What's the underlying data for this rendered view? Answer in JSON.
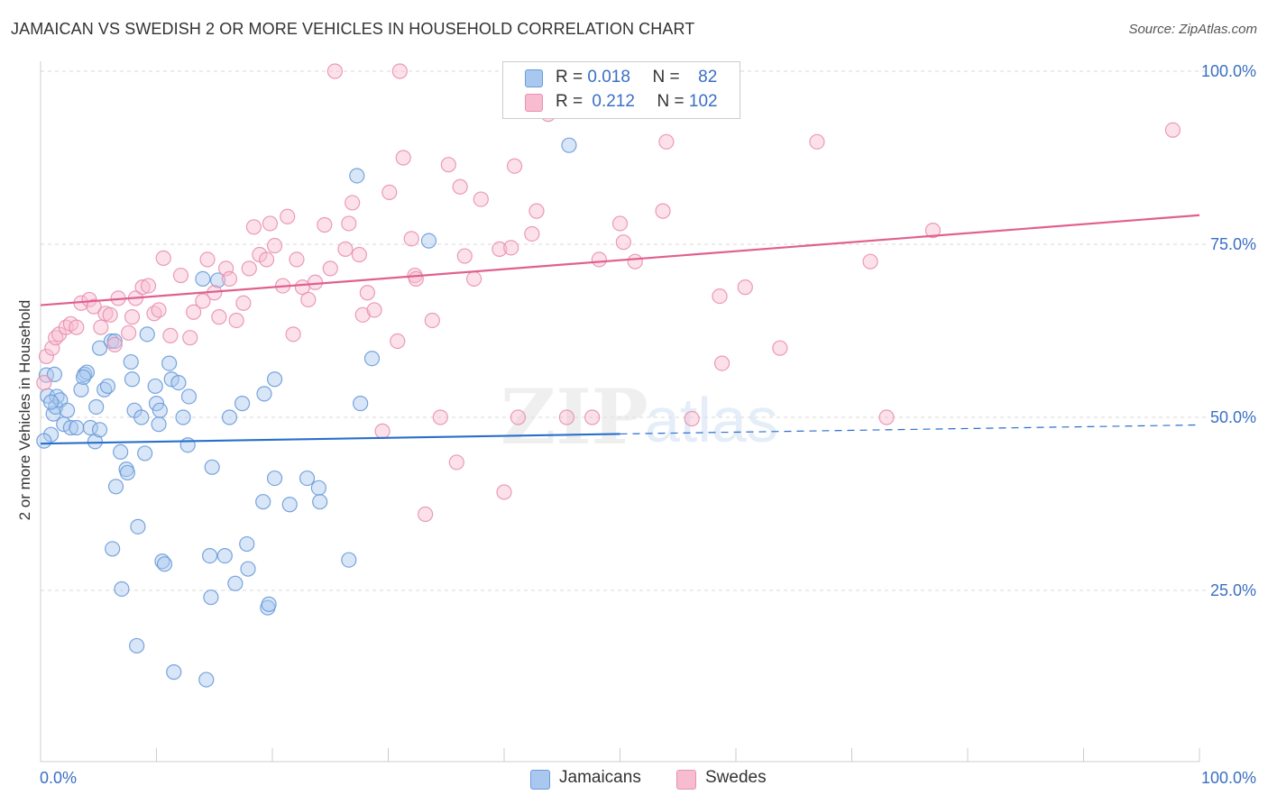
{
  "title": "JAMAICAN VS SWEDISH 2 OR MORE VEHICLES IN HOUSEHOLD CORRELATION CHART",
  "source": "Source: ZipAtlas.com",
  "watermark": {
    "zip": "ZIP",
    "atlas": "atlas"
  },
  "legend": {
    "rows": [
      {
        "r_label": "R =",
        "r_value": "0.018",
        "n_label": "N =",
        "n_value": "82",
        "color": "#a8c8f0",
        "border": "#6a9bd8"
      },
      {
        "r_label": "R =",
        "r_value": "0.212",
        "n_label": "N =",
        "n_value": "102",
        "color": "#f8bcd0",
        "border": "#e890b0"
      }
    ]
  },
  "bottom_legend": [
    {
      "label": "Jamaicans",
      "color": "#a8c8f0",
      "border": "#6a9bd8"
    },
    {
      "label": "Swedes",
      "color": "#f8bcd0",
      "border": "#e890b0"
    }
  ],
  "chart_data": {
    "type": "scatter",
    "title": "JAMAICAN VS SWEDISH 2 OR MORE VEHICLES IN HOUSEHOLD CORRELATION CHART",
    "xlabel": "",
    "ylabel": "2 or more Vehicles in Household",
    "xlim": [
      0,
      100
    ],
    "ylim": [
      5,
      102
    ],
    "x_tick_labels": [
      "0.0%",
      "100.0%"
    ],
    "y_tick_labels": [
      "25.0%",
      "50.0%",
      "75.0%",
      "100.0%"
    ],
    "y_ticks": [
      25,
      50,
      75,
      100
    ],
    "grid": true,
    "legend_position": "top-center",
    "series": [
      {
        "name": "Jamaicans",
        "color": "#6a9bd8",
        "fill": "#a8c8f0",
        "trend": {
          "x0": 0,
          "y0": 46.2,
          "x1": 50,
          "y1": 47.6,
          "dashed_to": 100,
          "dashed_y1": 48.9,
          "line_color": "#2a6fcc"
        },
        "points": [
          [
            0.5,
            56.1
          ],
          [
            0.6,
            53.1
          ],
          [
            0.9,
            47.5
          ],
          [
            1.1,
            50.5
          ],
          [
            1.3,
            51.5
          ],
          [
            1.4,
            53.0
          ],
          [
            1.7,
            52.5
          ],
          [
            2.0,
            49.0
          ],
          [
            2.3,
            51.0
          ],
          [
            2.6,
            48.5
          ],
          [
            3.1,
            48.5
          ],
          [
            3.5,
            54.0
          ],
          [
            3.8,
            56.2
          ],
          [
            4.0,
            56.5
          ],
          [
            4.3,
            48.5
          ],
          [
            4.7,
            46.5
          ],
          [
            4.8,
            51.5
          ],
          [
            5.1,
            60.0
          ],
          [
            5.1,
            48.2
          ],
          [
            5.5,
            54.0
          ],
          [
            5.8,
            54.5
          ],
          [
            6.1,
            61.0
          ],
          [
            6.2,
            31.0
          ],
          [
            6.4,
            61.0
          ],
          [
            6.5,
            40.0
          ],
          [
            6.9,
            45.0
          ],
          [
            7.0,
            25.2
          ],
          [
            7.4,
            42.5
          ],
          [
            7.5,
            42.0
          ],
          [
            7.8,
            58.0
          ],
          [
            7.9,
            55.5
          ],
          [
            8.1,
            51.0
          ],
          [
            8.3,
            17.0
          ],
          [
            8.4,
            34.2
          ],
          [
            8.7,
            50.0
          ],
          [
            9.0,
            44.8
          ],
          [
            9.2,
            62.0
          ],
          [
            9.9,
            54.5
          ],
          [
            10.0,
            52.0
          ],
          [
            10.2,
            49.0
          ],
          [
            10.3,
            51.0
          ],
          [
            10.5,
            29.2
          ],
          [
            10.7,
            28.8
          ],
          [
            11.1,
            57.8
          ],
          [
            11.3,
            55.5
          ],
          [
            11.5,
            13.2
          ],
          [
            11.9,
            55.0
          ],
          [
            12.3,
            50.0
          ],
          [
            12.7,
            46.0
          ],
          [
            12.8,
            53.0
          ],
          [
            14.0,
            70.0
          ],
          [
            14.3,
            12.1
          ],
          [
            14.6,
            30.0
          ],
          [
            14.7,
            24.0
          ],
          [
            14.8,
            42.8
          ],
          [
            15.3,
            69.8
          ],
          [
            15.9,
            30.0
          ],
          [
            16.3,
            50.0
          ],
          [
            16.8,
            26.0
          ],
          [
            17.4,
            52.0
          ],
          [
            17.8,
            31.7
          ],
          [
            17.9,
            28.1
          ],
          [
            19.2,
            37.8
          ],
          [
            19.3,
            53.4
          ],
          [
            19.6,
            22.5
          ],
          [
            19.7,
            23.0
          ],
          [
            20.2,
            55.5
          ],
          [
            20.2,
            41.2
          ],
          [
            21.5,
            37.4
          ],
          [
            23.0,
            41.2
          ],
          [
            24.0,
            39.8
          ],
          [
            24.1,
            37.8
          ],
          [
            26.6,
            29.4
          ],
          [
            27.3,
            84.9
          ],
          [
            27.6,
            52.0
          ],
          [
            28.6,
            58.5
          ],
          [
            33.5,
            75.5
          ],
          [
            45.6,
            89.3
          ],
          [
            0.3,
            46.6
          ],
          [
            0.9,
            52.2
          ],
          [
            1.2,
            56.2
          ],
          [
            3.7,
            55.8
          ]
        ]
      },
      {
        "name": "Swedes",
        "color": "#e890b0",
        "fill": "#f8bcd0",
        "trend": {
          "x0": 0,
          "y0": 66.2,
          "x1": 100,
          "y1": 79.2,
          "line_color": "#e06090"
        },
        "points": [
          [
            0.3,
            55.0
          ],
          [
            0.5,
            58.8
          ],
          [
            1.0,
            60.0
          ],
          [
            1.3,
            61.5
          ],
          [
            1.6,
            62.0
          ],
          [
            2.2,
            63.0
          ],
          [
            2.6,
            63.5
          ],
          [
            3.1,
            63.0
          ],
          [
            3.5,
            66.5
          ],
          [
            4.2,
            67.0
          ],
          [
            4.6,
            66.0
          ],
          [
            5.2,
            63.0
          ],
          [
            5.6,
            65.0
          ],
          [
            6.0,
            64.8
          ],
          [
            6.4,
            60.5
          ],
          [
            6.7,
            67.2
          ],
          [
            7.6,
            62.2
          ],
          [
            7.9,
            64.5
          ],
          [
            8.2,
            67.2
          ],
          [
            8.8,
            68.8
          ],
          [
            9.3,
            69.0
          ],
          [
            9.8,
            65.0
          ],
          [
            10.2,
            65.5
          ],
          [
            10.6,
            73.0
          ],
          [
            11.2,
            61.8
          ],
          [
            12.1,
            70.5
          ],
          [
            12.9,
            61.5
          ],
          [
            13.2,
            65.2
          ],
          [
            14.0,
            66.8
          ],
          [
            14.4,
            72.8
          ],
          [
            15.0,
            68.0
          ],
          [
            15.4,
            64.5
          ],
          [
            16.0,
            71.5
          ],
          [
            16.3,
            70.0
          ],
          [
            16.9,
            64.0
          ],
          [
            17.5,
            66.5
          ],
          [
            18.0,
            71.5
          ],
          [
            18.4,
            77.5
          ],
          [
            18.9,
            73.5
          ],
          [
            19.5,
            72.8
          ],
          [
            19.8,
            78.0
          ],
          [
            20.2,
            74.8
          ],
          [
            20.9,
            69.0
          ],
          [
            21.3,
            79.0
          ],
          [
            21.8,
            62.0
          ],
          [
            22.1,
            72.8
          ],
          [
            22.6,
            68.8
          ],
          [
            23.1,
            67.0
          ],
          [
            23.7,
            69.5
          ],
          [
            24.5,
            77.8
          ],
          [
            25.0,
            71.5
          ],
          [
            25.4,
            100.0
          ],
          [
            26.3,
            74.3
          ],
          [
            26.6,
            78.0
          ],
          [
            26.9,
            81.0
          ],
          [
            27.5,
            73.5
          ],
          [
            27.8,
            64.8
          ],
          [
            28.2,
            68.0
          ],
          [
            28.8,
            65.5
          ],
          [
            29.5,
            48.0
          ],
          [
            30.1,
            82.5
          ],
          [
            30.8,
            61.0
          ],
          [
            31.0,
            100.0
          ],
          [
            31.3,
            87.5
          ],
          [
            32.0,
            75.8
          ],
          [
            32.3,
            70.5
          ],
          [
            32.4,
            70.0
          ],
          [
            33.2,
            36.0
          ],
          [
            33.8,
            64.0
          ],
          [
            34.5,
            50.0
          ],
          [
            35.2,
            86.5
          ],
          [
            35.9,
            43.5
          ],
          [
            36.2,
            83.3
          ],
          [
            36.6,
            73.3
          ],
          [
            37.4,
            70.0
          ],
          [
            38.0,
            81.5
          ],
          [
            39.6,
            74.3
          ],
          [
            40.0,
            39.2
          ],
          [
            40.6,
            74.5
          ],
          [
            40.9,
            86.3
          ],
          [
            41.2,
            50.0
          ],
          [
            42.4,
            76.5
          ],
          [
            42.8,
            79.8
          ],
          [
            43.8,
            93.8
          ],
          [
            45.4,
            50.0
          ],
          [
            47.6,
            50.0
          ],
          [
            48.2,
            72.8
          ],
          [
            50.0,
            78.0
          ],
          [
            50.3,
            75.3
          ],
          [
            51.3,
            72.5
          ],
          [
            53.7,
            79.8
          ],
          [
            54.0,
            89.8
          ],
          [
            56.2,
            49.8
          ],
          [
            58.6,
            67.5
          ],
          [
            58.8,
            57.8
          ],
          [
            60.8,
            68.8
          ],
          [
            63.8,
            60.0
          ],
          [
            67.0,
            89.8
          ],
          [
            71.6,
            72.5
          ],
          [
            73.0,
            50.0
          ],
          [
            77.0,
            77.0
          ],
          [
            97.7,
            91.5
          ]
        ]
      }
    ]
  }
}
